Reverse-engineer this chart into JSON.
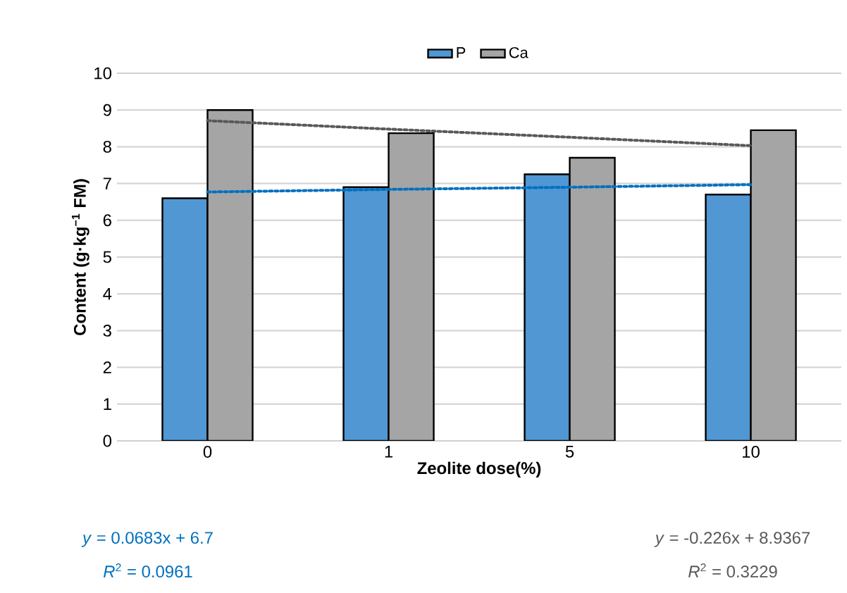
{
  "chart_data": {
    "type": "bar",
    "xlabel": "Zeolite dose(%)",
    "ylabel": "Content (g·kg$^{−1}$ FM)",
    "categories": [
      "0",
      "1",
      "5",
      "10"
    ],
    "series": [
      {
        "name": "P",
        "color": "#5097d3",
        "values": [
          6.6,
          6.9,
          7.25,
          6.7
        ]
      },
      {
        "name": "Ca",
        "color": "#a5a5a5",
        "values": [
          9.0,
          8.37,
          7.7,
          8.45
        ]
      },
      {
        "type": "line",
        "color": "#0070c0",
        "line_style": "dotted",
        "values": [
          6.77,
          6.84,
          6.9,
          6.97
        ]
      },
      {
        "type": "line",
        "color": "#595959",
        "line_style": "dotted",
        "values": [
          8.71,
          8.48,
          8.26,
          8.03
        ]
      }
    ],
    "ylim": [
      0,
      10
    ],
    "yticks": [
      0,
      1,
      2,
      3,
      4,
      5,
      6,
      7,
      8,
      9,
      10
    ],
    "grid": "y",
    "legend": "top",
    "annotations": [
      "*y* = 0.0683x + 6.7",
      "*R*$^{2}$ = 0.0961",
      "*y* = -0.226x + 8.9367",
      "*R*$^{2}$ = 0.3229"
    ]
  }
}
